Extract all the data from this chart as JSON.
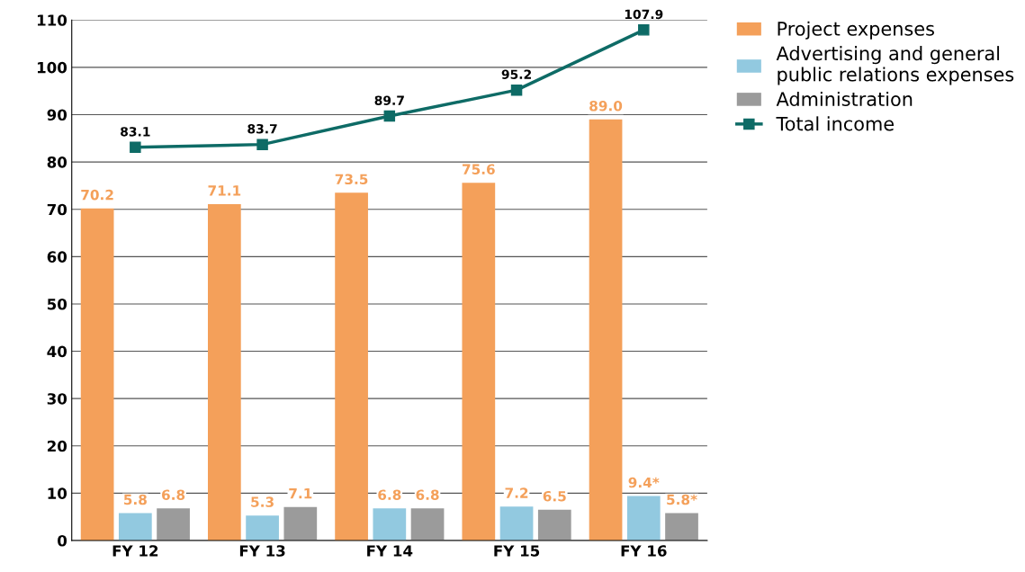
{
  "chart_data": {
    "type": "bar",
    "categories": [
      "FY 12",
      "FY 13",
      "FY 14",
      "FY 15",
      "FY 16"
    ],
    "series": [
      {
        "name": "Project expenses",
        "color": "#f4a05a",
        "values": [
          70.2,
          71.1,
          73.5,
          75.6,
          89.0
        ],
        "value_labels": [
          "70.2",
          "71.1",
          "73.5",
          "75.6",
          "89.0"
        ]
      },
      {
        "name": "Advertising and general\npublic relations expenses",
        "color": "#92c9e0",
        "values": [
          5.8,
          5.3,
          6.8,
          7.2,
          9.4
        ],
        "value_labels": [
          "5.8",
          "5.3",
          "6.8",
          "7.2",
          "9.4*"
        ]
      },
      {
        "name": "Administration",
        "color": "#9b9b9b",
        "values": [
          6.8,
          7.1,
          6.8,
          6.5,
          5.8
        ],
        "value_labels": [
          "6.8",
          "7.1",
          "6.8",
          "6.5",
          "5.8*"
        ]
      },
      {
        "name": "Total income",
        "color": "#0e6b66",
        "type": "line",
        "marker": "square",
        "values": [
          83.1,
          83.7,
          89.7,
          95.2,
          107.9
        ],
        "value_labels": [
          "83.1",
          "83.7",
          "89.7",
          "95.2",
          "107.9"
        ]
      }
    ],
    "ylim": [
      0,
      110
    ],
    "yticks": [
      0,
      10,
      20,
      30,
      40,
      50,
      60,
      70,
      80,
      90,
      100,
      110
    ],
    "grid": "y",
    "legend": "top right"
  }
}
